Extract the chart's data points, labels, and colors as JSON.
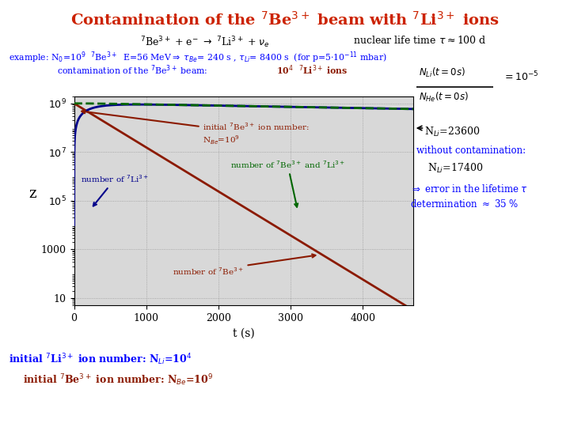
{
  "title": "Contamination of the $^{7}$Be$^{3+}$ beam with $^{7}$Li$^{3+}$ ions",
  "title_color": "#CC2200",
  "subtitle_formula": "$^{7}$Be$^{3+}$ + e$^{-}$ $\\rightarrow$ $^{7}$Li$^{3+}$ + $\\nu_e$",
  "subtitle_lifetime": "nuclear life time $\\tau\\approx$100 d",
  "example_line1": "example: N$_0$=10$^9$  $^7$Be$^{3+}$  E=56 MeV$\\Rightarrow$ $\\tau_{Be}$= 240 s , $\\tau_{Li}$= 8400 s  (for p=5$\\cdot$10$^{-11}$ mbar)",
  "example_line2": "contamination of the $^7$Be$^{3+}$ beam:   10$^4$  $^7$Li$^{3+}$ ions",
  "example_line2_red": "10$^4$  $^7$Li$^{3+}$ ions",
  "tau_Be": 240,
  "tau_Li": 8400,
  "N_Be0": 1000000000.0,
  "N_Li0": 10000.0,
  "t_max": 4700,
  "ylim_min": 5,
  "ylim_max": 2000000000.0,
  "xlabel": "t (s)",
  "ylabel": "z",
  "Be_color": "#8B1A00",
  "Li_color": "#00008B",
  "sum_color": "#006600",
  "bg_color": "#ffffff",
  "plot_bg": "#d8d8d8",
  "initial_Be_label1": "initial $^7$Be$^{3+}$ ion number:",
  "initial_Be_label2": "N$_{Be}$=10$^9$",
  "label_Li": "number of $^7$Li$^{3+}$",
  "label_Be": "number of $^7$Be$^{3+}$",
  "label_sum": "number of $^7$Be$^{3+}$ and $^7$Li$^{3+}$",
  "annotation_NLi": "N$_{Li}$=23600",
  "annotation_nocontam": "without contamination:",
  "annotation_NLi17": "N$_{Li}$=17400",
  "annotation_error1": "$\\Rightarrow$ error in the lifetime $\\tau$",
  "annotation_error2": "determination $\\approx$ 35 %",
  "bottom_line1": "initial $^7$Li$^{3+}$ ion number: N$_{Li}$=10$^4$",
  "bottom_line2": "initial $^7$Be$^{3+}$ ion number: N$_{Be}$=10$^9$"
}
